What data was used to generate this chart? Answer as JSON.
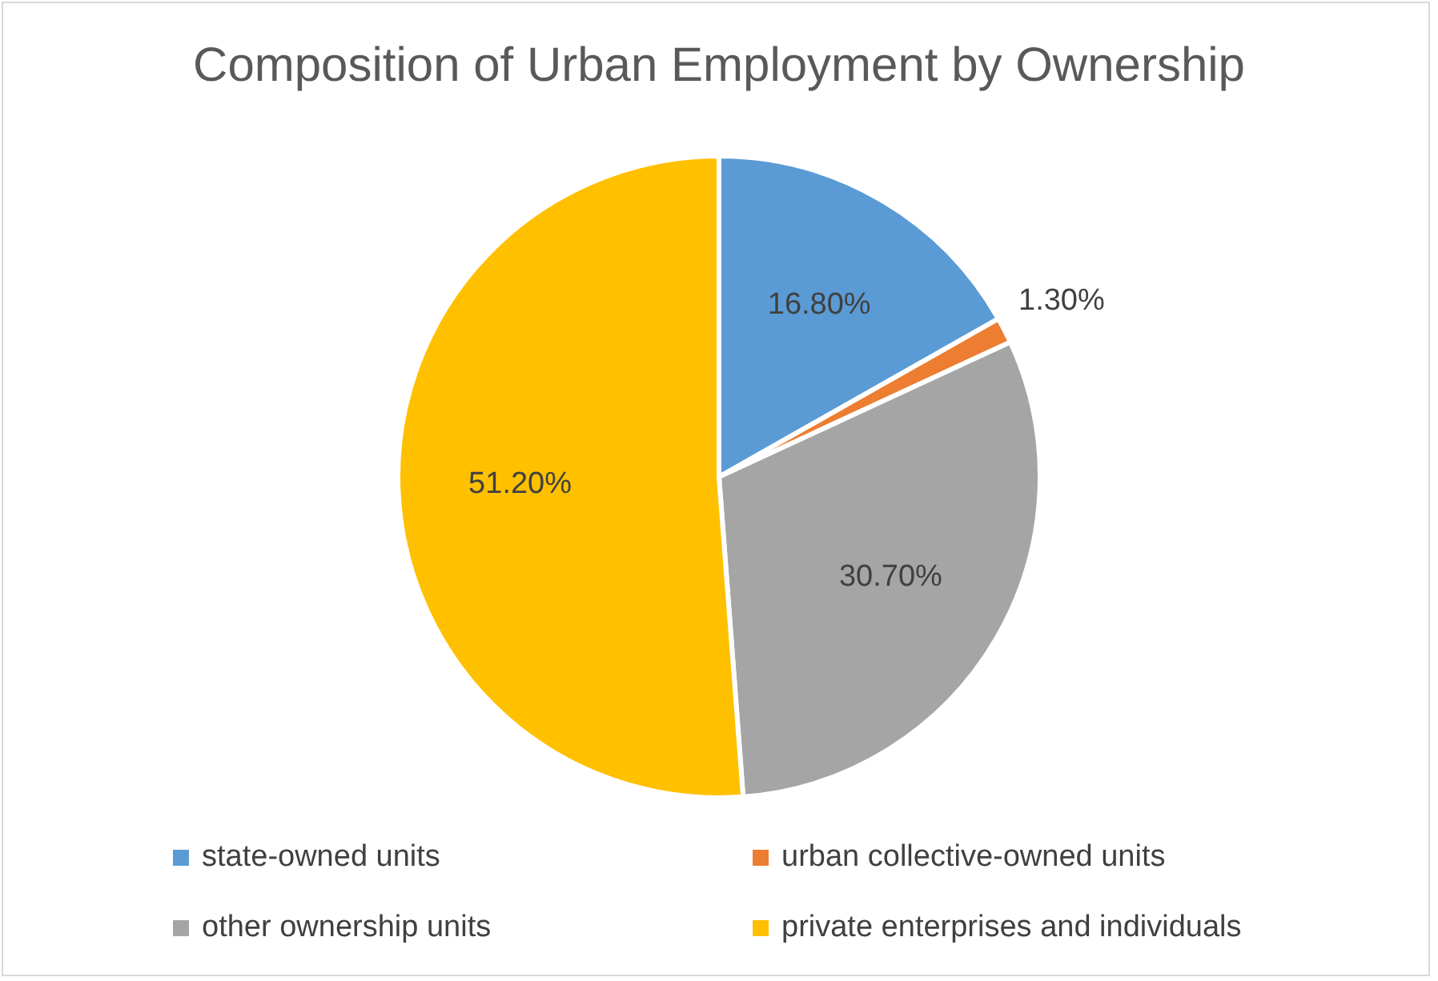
{
  "chart_data": {
    "type": "pie",
    "title": "Composition of Urban Employment by Ownership",
    "categories": [
      "state-owned units",
      "urban collective-owned units",
      "other ownership units",
      "private enterprises and individuals"
    ],
    "values": [
      16.8,
      1.3,
      30.7,
      51.2
    ],
    "value_labels": [
      "16.80%",
      "1.30%",
      "30.70%",
      "51.20%"
    ],
    "colors": [
      "#5b9bd5",
      "#ed7d31",
      "#a5a5a5",
      "#ffc000"
    ],
    "legend": "bottom"
  }
}
